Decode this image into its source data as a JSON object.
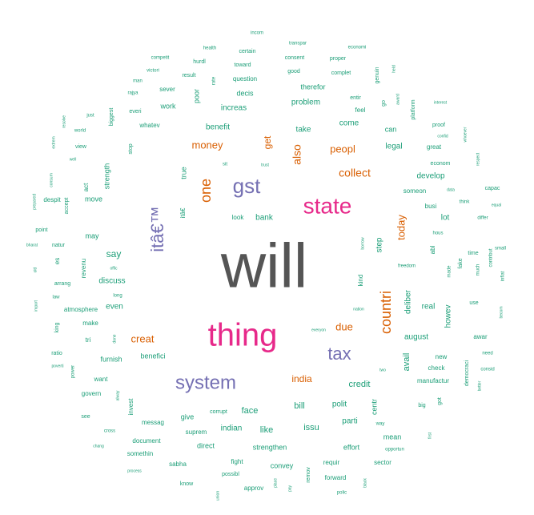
{
  "chart_data": {
    "type": "wordcloud",
    "colors": {
      "tier1": "#555555",
      "tier2": "#E7298A",
      "tier3": "#7570B3",
      "tier4": "#D95F02",
      "tier5": "#1B9E77"
    },
    "words": [
      {
        "text": "will",
        "tier": 1
      },
      {
        "text": "thing",
        "tier": 2
      },
      {
        "text": "state",
        "tier": 2
      },
      {
        "text": "system",
        "tier": 3
      },
      {
        "text": "gst",
        "tier": 3
      },
      {
        "text": "tax",
        "tier": 3
      },
      {
        "text": "itâ€™",
        "tier": 3
      },
      {
        "text": "countri",
        "tier": 4
      },
      {
        "text": "one",
        "tier": 4
      },
      {
        "text": "also",
        "tier": 4
      },
      {
        "text": "money",
        "tier": 4
      },
      {
        "text": "peopl",
        "tier": 4
      },
      {
        "text": "collect",
        "tier": 4
      },
      {
        "text": "get",
        "tier": 4
      },
      {
        "text": "today",
        "tier": 4
      },
      {
        "text": "creat",
        "tier": 4
      },
      {
        "text": "due",
        "tier": 4
      },
      {
        "text": "india",
        "tier": 4
      },
      {
        "text": "incom",
        "tier": 5
      },
      {
        "text": "transpar",
        "tier": 5
      },
      {
        "text": "health",
        "tier": 5
      },
      {
        "text": "certain",
        "tier": 5
      },
      {
        "text": "economi",
        "tier": 5
      },
      {
        "text": "competit",
        "tier": 5
      },
      {
        "text": "hurdl",
        "tier": 5
      },
      {
        "text": "toward",
        "tier": 5
      },
      {
        "text": "consent",
        "tier": 5
      },
      {
        "text": "proper",
        "tier": 5
      },
      {
        "text": "victori",
        "tier": 5
      },
      {
        "text": "result",
        "tier": 5
      },
      {
        "text": "rate",
        "tier": 5
      },
      {
        "text": "question",
        "tier": 5
      },
      {
        "text": "good",
        "tier": 5
      },
      {
        "text": "complet",
        "tier": 5
      },
      {
        "text": "genuin",
        "tier": 5
      },
      {
        "text": "held",
        "tier": 5
      },
      {
        "text": "man",
        "tier": 5
      },
      {
        "text": "sever",
        "tier": 5
      },
      {
        "text": "decis",
        "tier": 5
      },
      {
        "text": "therefor",
        "tier": 5
      },
      {
        "text": "rajya",
        "tier": 5
      },
      {
        "text": "poor",
        "tier": 5
      },
      {
        "text": "entir",
        "tier": 5
      },
      {
        "text": "go",
        "tier": 5
      },
      {
        "text": "award",
        "tier": 5
      },
      {
        "text": "everi",
        "tier": 5
      },
      {
        "text": "work",
        "tier": 5
      },
      {
        "text": "increas",
        "tier": 5
      },
      {
        "text": "problem",
        "tier": 5
      },
      {
        "text": "feel",
        "tier": 5
      },
      {
        "text": "platform",
        "tier": 5
      },
      {
        "text": "interest",
        "tier": 5
      },
      {
        "text": "just",
        "tier": 5
      },
      {
        "text": "biggest",
        "tier": 5
      },
      {
        "text": "whatev",
        "tier": 5
      },
      {
        "text": "come",
        "tier": 5
      },
      {
        "text": "proof",
        "tier": 5
      },
      {
        "text": "resolve",
        "tier": 5
      },
      {
        "text": "world",
        "tier": 5
      },
      {
        "text": "benefit",
        "tier": 5
      },
      {
        "text": "take",
        "tier": 5
      },
      {
        "text": "can",
        "tier": 5
      },
      {
        "text": "confid",
        "tier": 5
      },
      {
        "text": "whoever",
        "tier": 5
      },
      {
        "text": "extrem",
        "tier": 5
      },
      {
        "text": "view",
        "tier": 5
      },
      {
        "text": "stop",
        "tier": 5
      },
      {
        "text": "legal",
        "tier": 5
      },
      {
        "text": "great",
        "tier": 5
      },
      {
        "text": "well",
        "tier": 5
      },
      {
        "text": "sit",
        "tier": 5
      },
      {
        "text": "trust",
        "tier": 5
      },
      {
        "text": "econom",
        "tier": 5
      },
      {
        "text": "respect",
        "tier": 5
      },
      {
        "text": "true",
        "tier": 5
      },
      {
        "text": "strength",
        "tier": 5
      },
      {
        "text": "develop",
        "tier": 5
      },
      {
        "text": "consum",
        "tier": 5
      },
      {
        "text": "act",
        "tier": 5
      },
      {
        "text": "someon",
        "tier": 5
      },
      {
        "text": "data",
        "tier": 5
      },
      {
        "text": "capac",
        "tier": 5
      },
      {
        "text": "prepared",
        "tier": 5
      },
      {
        "text": "despit",
        "tier": 5
      },
      {
        "text": "move",
        "tier": 5
      },
      {
        "text": "busi",
        "tier": 5
      },
      {
        "text": "think",
        "tier": 5
      },
      {
        "text": "equal",
        "tier": 5
      },
      {
        "text": "accept",
        "tier": 5
      },
      {
        "text": "itâ€",
        "tier": 5
      },
      {
        "text": "look",
        "tier": 5
      },
      {
        "text": "bank",
        "tier": 5
      },
      {
        "text": "lot",
        "tier": 5
      },
      {
        "text": "differ",
        "tier": 5
      },
      {
        "text": "point",
        "tier": 5
      },
      {
        "text": "may",
        "tier": 5
      },
      {
        "text": "hous",
        "tier": 5
      },
      {
        "text": "bharat",
        "tier": 5
      },
      {
        "text": "natur",
        "tier": 5
      },
      {
        "text": "step",
        "tier": 5
      },
      {
        "text": "abl",
        "tier": 5
      },
      {
        "text": "small",
        "tier": 5
      },
      {
        "text": "borrow",
        "tier": 5
      },
      {
        "text": "es",
        "tier": 5
      },
      {
        "text": "say",
        "tier": 5
      },
      {
        "text": "time",
        "tier": 5
      },
      {
        "text": "offic",
        "tier": 5
      },
      {
        "text": "freedom",
        "tier": 5
      },
      {
        "text": "fake",
        "tier": 5
      },
      {
        "text": "old",
        "tier": 5
      },
      {
        "text": "revenu",
        "tier": 5
      },
      {
        "text": "discuss",
        "tier": 5
      },
      {
        "text": "kind",
        "tier": 5
      },
      {
        "text": "made",
        "tier": 5
      },
      {
        "text": "much",
        "tier": 5
      },
      {
        "text": "contribut",
        "tier": 5
      },
      {
        "text": "inflat",
        "tier": 5
      },
      {
        "text": "arrang",
        "tier": 5
      },
      {
        "text": "law",
        "tier": 5
      },
      {
        "text": "long",
        "tier": 5
      },
      {
        "text": "deliber",
        "tier": 5
      },
      {
        "text": "import",
        "tier": 5
      },
      {
        "text": "atmosphere",
        "tier": 5
      },
      {
        "text": "even",
        "tier": 5
      },
      {
        "text": "use",
        "tier": 5
      },
      {
        "text": "nation",
        "tier": 5
      },
      {
        "text": "real",
        "tier": 5
      },
      {
        "text": "howev",
        "tier": 5
      },
      {
        "text": "becom",
        "tier": 5
      },
      {
        "text": "king",
        "tier": 5
      },
      {
        "text": "make",
        "tier": 5
      },
      {
        "text": "august",
        "tier": 5
      },
      {
        "text": "awar",
        "tier": 5
      },
      {
        "text": "everyon",
        "tier": 5
      },
      {
        "text": "tri",
        "tier": 5
      },
      {
        "text": "done",
        "tier": 5
      },
      {
        "text": "ratio",
        "tier": 5
      },
      {
        "text": "benefici",
        "tier": 5
      },
      {
        "text": "new",
        "tier": 5
      },
      {
        "text": "need",
        "tier": 5
      },
      {
        "text": "furnish",
        "tier": 5
      },
      {
        "text": "poverti",
        "tier": 5
      },
      {
        "text": "two",
        "tier": 5
      },
      {
        "text": "check",
        "tier": 5
      },
      {
        "text": "consid",
        "tier": 5
      },
      {
        "text": "power",
        "tier": 5
      },
      {
        "text": "want",
        "tier": 5
      },
      {
        "text": "avail",
        "tier": 5
      },
      {
        "text": "democraci",
        "tier": 5
      },
      {
        "text": "manufactur",
        "tier": 5
      },
      {
        "text": "better",
        "tier": 5
      },
      {
        "text": "credit",
        "tier": 5
      },
      {
        "text": "govern",
        "tier": 5
      },
      {
        "text": "alway",
        "tier": 5
      },
      {
        "text": "face",
        "tier": 5
      },
      {
        "text": "bill",
        "tier": 5
      },
      {
        "text": "polit",
        "tier": 5
      },
      {
        "text": "centr",
        "tier": 5
      },
      {
        "text": "big",
        "tier": 5
      },
      {
        "text": "got",
        "tier": 5
      },
      {
        "text": "invest",
        "tier": 5
      },
      {
        "text": "corrupt",
        "tier": 5
      },
      {
        "text": "see",
        "tier": 5
      },
      {
        "text": "messag",
        "tier": 5
      },
      {
        "text": "give",
        "tier": 5
      },
      {
        "text": "parti",
        "tier": 5
      },
      {
        "text": "way",
        "tier": 5
      },
      {
        "text": "cross",
        "tier": 5
      },
      {
        "text": "suprem",
        "tier": 5
      },
      {
        "text": "indian",
        "tier": 5
      },
      {
        "text": "like",
        "tier": 5
      },
      {
        "text": "issu",
        "tier": 5
      },
      {
        "text": "mean",
        "tier": 5
      },
      {
        "text": "chang",
        "tier": 5
      },
      {
        "text": "document",
        "tier": 5
      },
      {
        "text": "direct",
        "tier": 5
      },
      {
        "text": "strengthen",
        "tier": 5
      },
      {
        "text": "effort",
        "tier": 5
      },
      {
        "text": "opportun",
        "tier": 5
      },
      {
        "text": "first",
        "tier": 5
      },
      {
        "text": "somethin",
        "tier": 5
      },
      {
        "text": "fight",
        "tier": 5
      },
      {
        "text": "sabha",
        "tier": 5
      },
      {
        "text": "convey",
        "tier": 5
      },
      {
        "text": "requir",
        "tier": 5
      },
      {
        "text": "sector",
        "tier": 5
      },
      {
        "text": "process",
        "tier": 5
      },
      {
        "text": "possibl",
        "tier": 5
      },
      {
        "text": "remov",
        "tier": 5
      },
      {
        "text": "forward",
        "tier": 5
      },
      {
        "text": "know",
        "tier": 5
      },
      {
        "text": "approv",
        "tier": 5
      },
      {
        "text": "place",
        "tier": 5
      },
      {
        "text": "pay",
        "tier": 5
      },
      {
        "text": "polic",
        "tier": 5
      },
      {
        "text": "black",
        "tier": 5
      },
      {
        "text": "union",
        "tier": 5
      },
      {
        "text": "vehicl",
        "tier": 5
      }
    ]
  }
}
